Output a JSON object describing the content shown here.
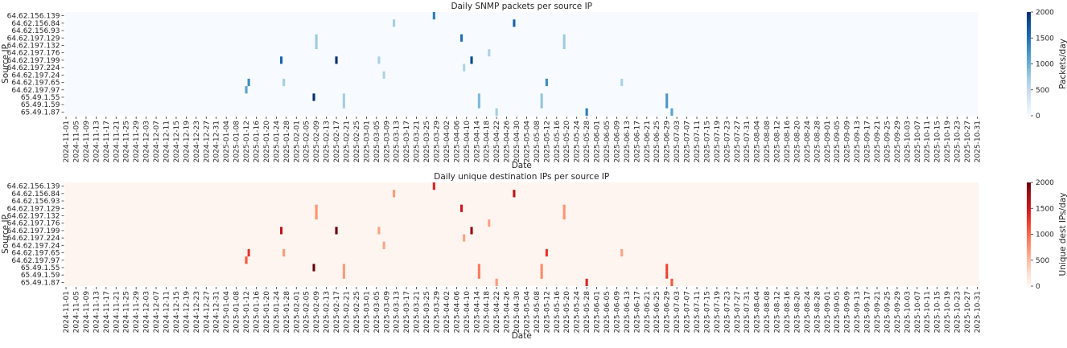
{
  "chart_data": [
    {
      "type": "heatmap",
      "title": "Daily SNMP packets per source IP",
      "xlabel": "Date",
      "ylabel": "Source IP",
      "colorbar_label": "Packets/day",
      "colormap": "Blues",
      "color_stops": [
        "#f7fbff",
        "#deebf7",
        "#c6dbef",
        "#9ecae1",
        "#6baed6",
        "#4292c6",
        "#2171b5",
        "#08519c",
        "#08306b"
      ],
      "vrange": [
        0,
        2000
      ],
      "colorbar_ticks": [
        "0",
        "500",
        "1000",
        "1500",
        "2000"
      ]
    },
    {
      "type": "heatmap",
      "title": "Daily unique destination IPs per source IP",
      "xlabel": "Date",
      "ylabel": "Source IP",
      "colorbar_label": "Unique dest IPs/day",
      "colormap": "Reds",
      "color_stops": [
        "#fff5f0",
        "#fee0d2",
        "#fcbba1",
        "#fc9272",
        "#fb6a4a",
        "#ef3b2c",
        "#cb181d",
        "#a50f15",
        "#67000d"
      ],
      "vrange": [
        0,
        2000
      ],
      "colorbar_ticks": [
        "0",
        "500",
        "1000",
        "1500",
        "2000"
      ]
    }
  ],
  "date_range": [
    "2024-11-01",
    "2025-10-31"
  ],
  "source_ips": [
    "64.62.156.139",
    "64.62.156.84",
    "64.62.156.93",
    "64.62.197.129",
    "64.62.197.132",
    "64.62.197.176",
    "64.62.197.199",
    "64.62.197.224",
    "64.62.197.24",
    "64.62.197.65",
    "64.62.197.97",
    "65.49.1.55",
    "65.49.1.59",
    "65.49.1.87"
  ],
  "xticks": [
    "2024-11-01",
    "2024-11-05",
    "2024-11-09",
    "2024-11-13",
    "2024-11-17",
    "2024-11-21",
    "2024-11-25",
    "2024-11-29",
    "2024-12-03",
    "2024-12-07",
    "2024-12-11",
    "2024-12-15",
    "2024-12-19",
    "2024-12-23",
    "2024-12-27",
    "2024-12-31",
    "2025-01-04",
    "2025-01-08",
    "2025-01-12",
    "2025-01-16",
    "2025-01-20",
    "2025-01-24",
    "2025-01-28",
    "2025-02-01",
    "2025-02-05",
    "2025-02-09",
    "2025-02-13",
    "2025-02-17",
    "2025-02-21",
    "2025-02-25",
    "2025-03-01",
    "2025-03-05",
    "2025-03-09",
    "2025-03-13",
    "2025-03-17",
    "2025-03-21",
    "2025-03-25",
    "2025-03-29",
    "2025-04-02",
    "2025-04-06",
    "2025-04-10",
    "2025-04-14",
    "2025-04-18",
    "2025-04-22",
    "2025-04-26",
    "2025-04-30",
    "2025-05-04",
    "2025-05-08",
    "2025-05-12",
    "2025-05-16",
    "2025-05-20",
    "2025-05-24",
    "2025-05-28",
    "2025-06-01",
    "2025-06-05",
    "2025-06-09",
    "2025-06-13",
    "2025-06-17",
    "2025-06-21",
    "2025-06-25",
    "2025-06-29",
    "2025-07-03",
    "2025-07-07",
    "2025-07-11",
    "2025-07-15",
    "2025-07-19",
    "2025-07-23",
    "2025-07-27",
    "2025-07-31",
    "2025-08-04",
    "2025-08-08",
    "2025-08-12",
    "2025-08-16",
    "2025-08-20",
    "2025-08-24",
    "2025-08-28",
    "2025-09-01",
    "2025-09-05",
    "2025-09-09",
    "2025-09-13",
    "2025-09-17",
    "2025-09-21",
    "2025-09-25",
    "2025-09-29",
    "2025-10-03",
    "2025-10-07",
    "2025-10-11",
    "2025-10-15",
    "2025-10-19",
    "2025-10-23",
    "2025-10-27",
    "2025-10-31"
  ],
  "cells": [
    {
      "ip": "64.62.156.139",
      "date": "2025-03-28",
      "value": 1400
    },
    {
      "ip": "64.62.156.84",
      "date": "2025-03-12",
      "value": 700
    },
    {
      "ip": "64.62.156.84",
      "date": "2025-04-29",
      "value": 1600
    },
    {
      "ip": "64.62.197.129",
      "date": "2025-02-09",
      "value": 750
    },
    {
      "ip": "64.62.197.132",
      "date": "2025-02-09",
      "value": 750
    },
    {
      "ip": "64.62.197.129",
      "date": "2025-04-08",
      "value": 1500
    },
    {
      "ip": "64.62.197.129",
      "date": "2025-05-19",
      "value": 750
    },
    {
      "ip": "64.62.197.132",
      "date": "2025-05-19",
      "value": 750
    },
    {
      "ip": "64.62.197.176",
      "date": "2025-04-19",
      "value": 650
    },
    {
      "ip": "64.62.197.199",
      "date": "2025-01-26",
      "value": 1600
    },
    {
      "ip": "64.62.197.199",
      "date": "2025-02-17",
      "value": 2000
    },
    {
      "ip": "64.62.197.199",
      "date": "2025-03-06",
      "value": 650
    },
    {
      "ip": "64.62.197.199",
      "date": "2025-04-12",
      "value": 1800
    },
    {
      "ip": "64.62.197.224",
      "date": "2025-04-09",
      "value": 650
    },
    {
      "ip": "64.62.197.24",
      "date": "2025-03-08",
      "value": 650
    },
    {
      "ip": "64.62.197.65",
      "date": "2025-01-13",
      "value": 1300
    },
    {
      "ip": "64.62.197.65",
      "date": "2025-01-27",
      "value": 700
    },
    {
      "ip": "64.62.197.65",
      "date": "2025-05-12",
      "value": 1300
    },
    {
      "ip": "64.62.197.65",
      "date": "2025-06-11",
      "value": 650
    },
    {
      "ip": "64.62.197.97",
      "date": "2025-01-12",
      "value": 1100
    },
    {
      "ip": "65.49.1.55",
      "date": "2025-02-08",
      "value": 2000
    },
    {
      "ip": "65.49.1.55",
      "date": "2025-02-20",
      "value": 700
    },
    {
      "ip": "65.49.1.59",
      "date": "2025-02-20",
      "value": 700
    },
    {
      "ip": "65.49.1.55",
      "date": "2025-04-15",
      "value": 900
    },
    {
      "ip": "65.49.1.59",
      "date": "2025-04-15",
      "value": 900
    },
    {
      "ip": "65.49.1.55",
      "date": "2025-05-10",
      "value": 800
    },
    {
      "ip": "65.49.1.59",
      "date": "2025-05-10",
      "value": 800
    },
    {
      "ip": "65.49.1.55",
      "date": "2025-06-29",
      "value": 1200
    },
    {
      "ip": "65.49.1.59",
      "date": "2025-06-29",
      "value": 1200
    },
    {
      "ip": "65.49.1.87",
      "date": "2025-04-22",
      "value": 700
    },
    {
      "ip": "65.49.1.87",
      "date": "2025-05-28",
      "value": 1400
    },
    {
      "ip": "65.49.1.87",
      "date": "2025-07-01",
      "value": 1100
    }
  ]
}
